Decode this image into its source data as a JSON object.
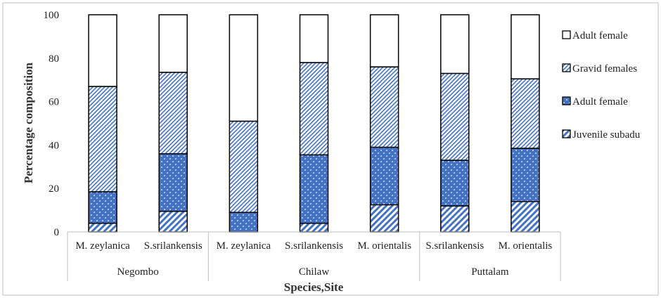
{
  "chart_data": {
    "type": "bar",
    "stacked": true,
    "title": "",
    "xlabel": "Species,Site",
    "ylabel": "Percentage composition",
    "ylim": [
      0,
      100
    ],
    "yticks": [
      "0",
      "20",
      "40",
      "60",
      "80",
      "100"
    ],
    "grid": false,
    "legend_position": "right",
    "groups": [
      {
        "label": "Negombo",
        "categories": [
          "M. zeylanica",
          "S.srilankensis"
        ]
      },
      {
        "label": "Chilaw",
        "categories": [
          "M. zeylanica",
          "S.srilankensis",
          "M. orientalis"
        ]
      },
      {
        "label": "Puttalam",
        "categories": [
          "S.srilankensis",
          "M. orientalis"
        ]
      }
    ],
    "categories": [
      "M. zeylanica",
      "S.srilankensis",
      "M. zeylanica",
      "S.srilankensis",
      "M. orientalis",
      "S.srilankensis",
      "M. orientalis"
    ],
    "series": [
      {
        "name": "Juvenile subadu",
        "pattern": "diagonal-hatch",
        "values": [
          4,
          9.5,
          0,
          4,
          12.5,
          12,
          14
        ]
      },
      {
        "name": "Adult female",
        "pattern": "dotted-blue",
        "values": [
          14.5,
          26.5,
          9,
          31.5,
          26.5,
          21,
          24.5
        ]
      },
      {
        "name": "Gravid females",
        "pattern": "dense-hatch",
        "values": [
          48.5,
          37.5,
          42,
          42.5,
          37,
          40,
          32
        ]
      },
      {
        "name": "Adult female",
        "pattern": "white",
        "values": [
          33,
          26.5,
          49,
          22,
          24,
          27,
          29.5
        ]
      }
    ],
    "colors": {
      "blue": "#4472c4",
      "edge": "#000000"
    }
  }
}
